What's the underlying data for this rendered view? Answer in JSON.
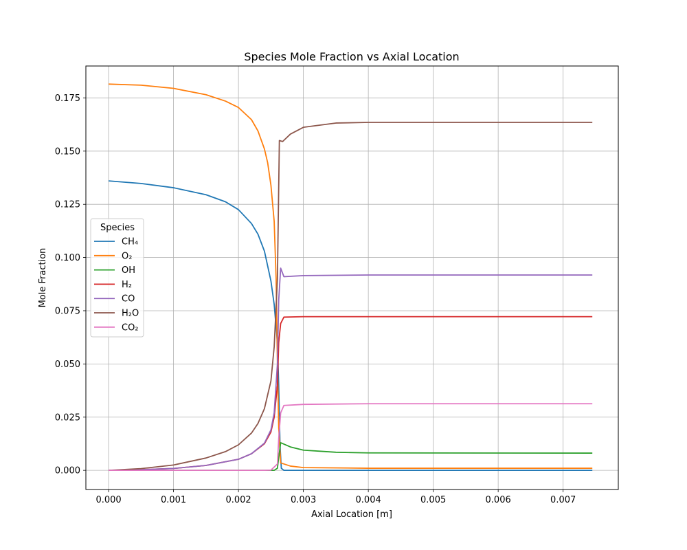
{
  "chart_data": {
    "type": "line",
    "title": "Species Mole Fraction vs Axial Location",
    "xlabel": "Axial Location [m]",
    "ylabel": "Mole Fraction",
    "xlim": [
      -0.00035,
      0.00785
    ],
    "ylim": [
      -0.009,
      0.19
    ],
    "xticks": [
      0.0,
      0.001,
      0.002,
      0.003,
      0.004,
      0.005,
      0.006,
      0.007
    ],
    "xtick_labels": [
      "0.000",
      "0.001",
      "0.002",
      "0.003",
      "0.004",
      "0.005",
      "0.006",
      "0.007"
    ],
    "yticks": [
      0.0,
      0.025,
      0.05,
      0.075,
      0.1,
      0.125,
      0.15,
      0.175
    ],
    "ytick_labels": [
      "0.000",
      "0.025",
      "0.050",
      "0.075",
      "0.100",
      "0.125",
      "0.150",
      "0.175"
    ],
    "grid": true,
    "legend": {
      "title": "Species",
      "placement": "center-left"
    },
    "series": [
      {
        "name": "CH₄",
        "color": "#1f77b4",
        "points": [
          [
            0.0,
            0.136
          ],
          [
            0.0005,
            0.1348
          ],
          [
            0.001,
            0.1328
          ],
          [
            0.0015,
            0.1295
          ],
          [
            0.0018,
            0.1262
          ],
          [
            0.002,
            0.1225
          ],
          [
            0.0022,
            0.116
          ],
          [
            0.0023,
            0.111
          ],
          [
            0.0024,
            0.103
          ],
          [
            0.0025,
            0.089
          ],
          [
            0.00255,
            0.078
          ],
          [
            0.0026,
            0.06
          ],
          [
            0.00262,
            0.04
          ],
          [
            0.00264,
            0.012
          ],
          [
            0.00266,
            0.001
          ],
          [
            0.0027,
            0.0
          ],
          [
            0.003,
            0.0
          ],
          [
            0.0045,
            0.0
          ],
          [
            0.006,
            0.0
          ],
          [
            0.00745,
            0.0
          ]
        ]
      },
      {
        "name": "O₂",
        "color": "#ff7f0e",
        "points": [
          [
            0.0,
            0.1815
          ],
          [
            0.0005,
            0.181
          ],
          [
            0.001,
            0.1795
          ],
          [
            0.0015,
            0.1765
          ],
          [
            0.0018,
            0.1735
          ],
          [
            0.002,
            0.1705
          ],
          [
            0.0022,
            0.1648
          ],
          [
            0.0023,
            0.1595
          ],
          [
            0.0024,
            0.151
          ],
          [
            0.00245,
            0.1445
          ],
          [
            0.0025,
            0.134
          ],
          [
            0.00255,
            0.117
          ],
          [
            0.00258,
            0.09
          ],
          [
            0.0026,
            0.05
          ],
          [
            0.00262,
            0.02
          ],
          [
            0.00265,
            0.0035
          ],
          [
            0.0028,
            0.002
          ],
          [
            0.003,
            0.0013
          ],
          [
            0.004,
            0.001
          ],
          [
            0.00745,
            0.001
          ]
        ]
      },
      {
        "name": "OH",
        "color": "#2ca02c",
        "points": [
          [
            0.0,
            0.0
          ],
          [
            0.0024,
            0.0
          ],
          [
            0.00255,
            0.0
          ],
          [
            0.0026,
            0.001
          ],
          [
            0.00262,
            0.006
          ],
          [
            0.00265,
            0.013
          ],
          [
            0.0028,
            0.011
          ],
          [
            0.003,
            0.0095
          ],
          [
            0.0035,
            0.0085
          ],
          [
            0.004,
            0.0082
          ],
          [
            0.00745,
            0.0081
          ]
        ]
      },
      {
        "name": "H₂",
        "color": "#d62728",
        "points": [
          [
            0.0,
            0.0
          ],
          [
            0.0005,
            0.0003
          ],
          [
            0.001,
            0.0009
          ],
          [
            0.0015,
            0.0023
          ],
          [
            0.002,
            0.0052
          ],
          [
            0.0022,
            0.0078
          ],
          [
            0.0024,
            0.0125
          ],
          [
            0.0025,
            0.018
          ],
          [
            0.00255,
            0.025
          ],
          [
            0.0026,
            0.04
          ],
          [
            0.00262,
            0.06
          ],
          [
            0.00265,
            0.069
          ],
          [
            0.0027,
            0.072
          ],
          [
            0.003,
            0.0722
          ],
          [
            0.00745,
            0.0722
          ]
        ]
      },
      {
        "name": "CO",
        "color": "#9467bd",
        "points": [
          [
            0.0,
            0.0
          ],
          [
            0.0005,
            0.0003
          ],
          [
            0.001,
            0.0009
          ],
          [
            0.0015,
            0.0023
          ],
          [
            0.002,
            0.0052
          ],
          [
            0.0022,
            0.0078
          ],
          [
            0.0024,
            0.0128
          ],
          [
            0.0025,
            0.019
          ],
          [
            0.00255,
            0.027
          ],
          [
            0.0026,
            0.05
          ],
          [
            0.00262,
            0.08
          ],
          [
            0.00265,
            0.095
          ],
          [
            0.0027,
            0.091
          ],
          [
            0.003,
            0.0915
          ],
          [
            0.004,
            0.0918
          ],
          [
            0.00745,
            0.0918
          ]
        ]
      },
      {
        "name": "H₂O",
        "color": "#8c564b",
        "points": [
          [
            0.0,
            0.0
          ],
          [
            0.0005,
            0.0008
          ],
          [
            0.001,
            0.0025
          ],
          [
            0.0015,
            0.0058
          ],
          [
            0.0018,
            0.0088
          ],
          [
            0.002,
            0.012
          ],
          [
            0.0022,
            0.0175
          ],
          [
            0.0023,
            0.022
          ],
          [
            0.0024,
            0.029
          ],
          [
            0.0025,
            0.042
          ],
          [
            0.00255,
            0.058
          ],
          [
            0.0026,
            0.09
          ],
          [
            0.00263,
            0.155
          ],
          [
            0.00268,
            0.1545
          ],
          [
            0.0028,
            0.158
          ],
          [
            0.003,
            0.1612
          ],
          [
            0.0035,
            0.1632
          ],
          [
            0.004,
            0.1635
          ],
          [
            0.00745,
            0.1635
          ]
        ]
      },
      {
        "name": "CO₂",
        "color": "#e377c2",
        "points": [
          [
            0.0,
            0.0
          ],
          [
            0.0024,
            0.0
          ],
          [
            0.0025,
            0.0001
          ],
          [
            0.0026,
            0.003
          ],
          [
            0.00262,
            0.015
          ],
          [
            0.00265,
            0.027
          ],
          [
            0.0027,
            0.0305
          ],
          [
            0.003,
            0.031
          ],
          [
            0.004,
            0.0313
          ],
          [
            0.00745,
            0.0313
          ]
        ]
      }
    ]
  }
}
